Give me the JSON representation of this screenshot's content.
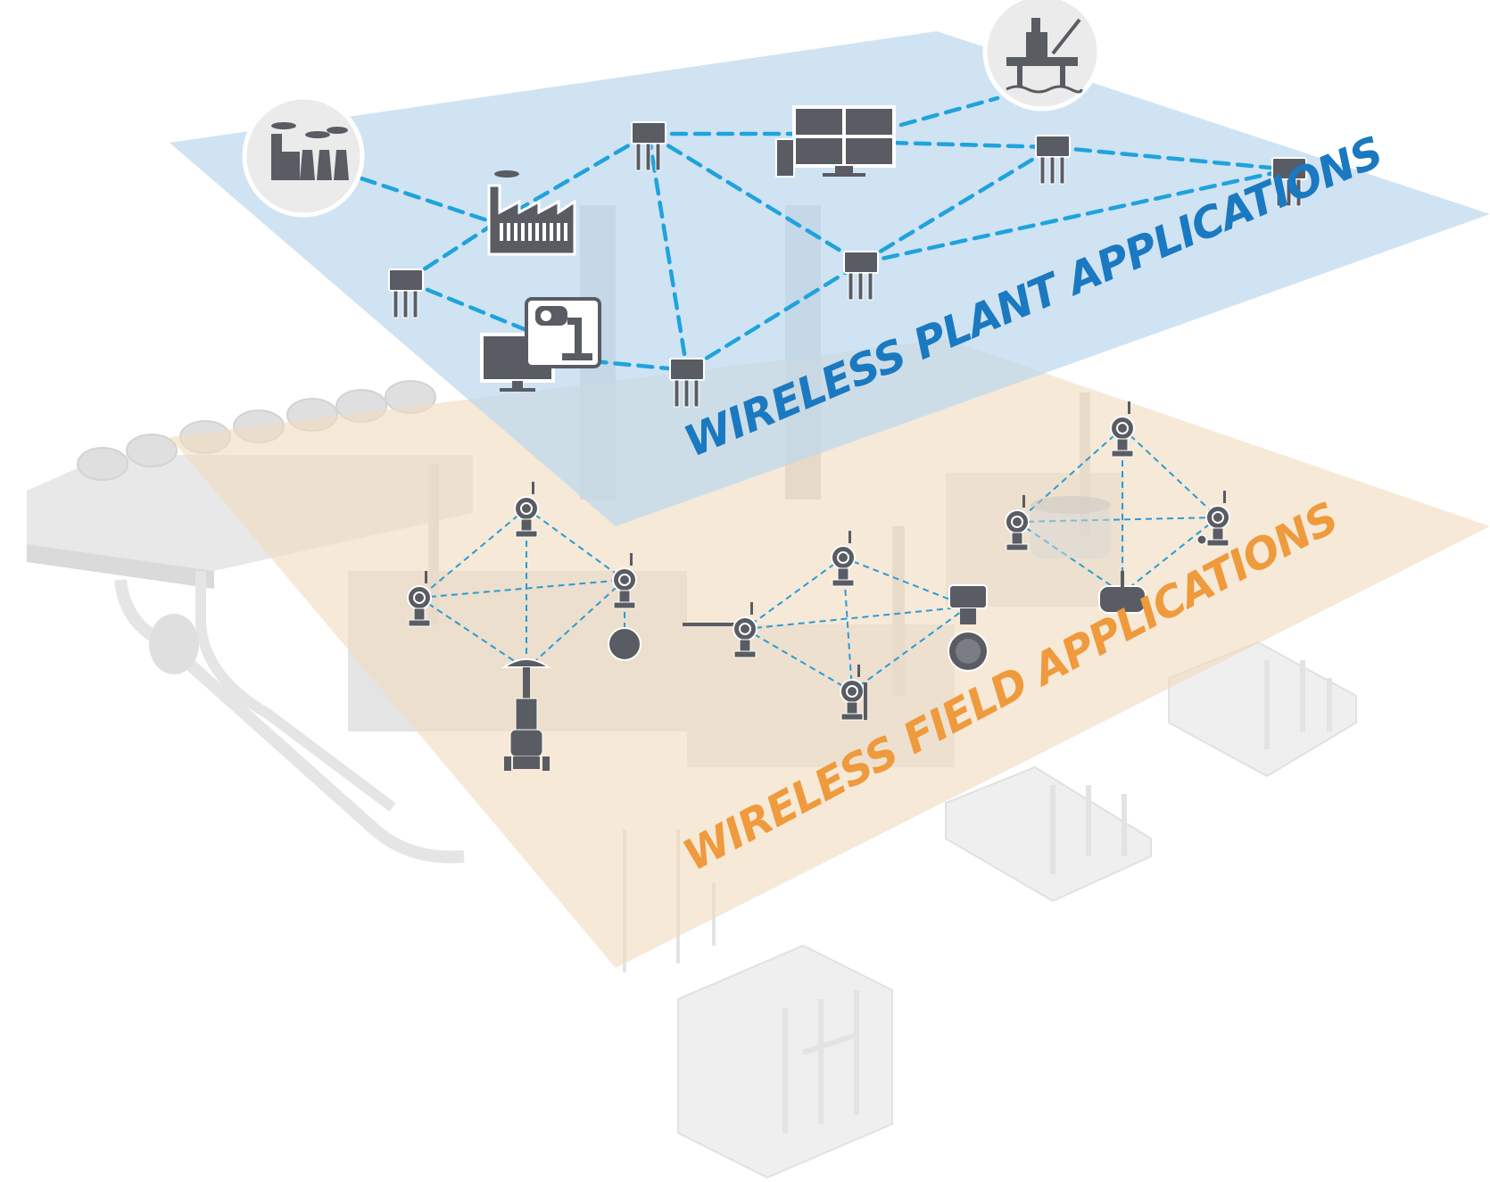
{
  "labels": {
    "plant": "WIRELESS PLANT APPLICATIONS",
    "field": "WIRELESS FIELD APPLICATIONS"
  },
  "colors": {
    "plant_layer": "#bcd8ee",
    "field_layer": "#f1dcbf",
    "plant_text": "#1a79c0",
    "field_text": "#ef9a3c",
    "plant_link": "#1fa3dc",
    "field_link": "#2a9bd6",
    "device": "#595c63",
    "plant_art": "#e6e6e6"
  },
  "plant_nodes": [
    {
      "id": "power-plant",
      "kind": "power-plant-icon"
    },
    {
      "id": "factory",
      "kind": "factory-icon"
    },
    {
      "id": "gateway-top",
      "kind": "gateway-icon"
    },
    {
      "id": "control-room",
      "kind": "video-wall-icon"
    },
    {
      "id": "offshore-rig",
      "kind": "offshore-rig-icon"
    },
    {
      "id": "gateway-right-1",
      "kind": "gateway-icon"
    },
    {
      "id": "gateway-right-2",
      "kind": "gateway-icon"
    },
    {
      "id": "gateway-left",
      "kind": "gateway-icon"
    },
    {
      "id": "camera-station",
      "kind": "security-camera-icon"
    },
    {
      "id": "gateway-center",
      "kind": "gateway-icon"
    },
    {
      "id": "gateway-bottom",
      "kind": "gateway-icon"
    }
  ],
  "field_clusters": [
    {
      "id": "cluster-left",
      "devices": [
        "transmitter-icon",
        "transmitter-icon",
        "transmitter-icon",
        "control-valve-icon"
      ]
    },
    {
      "id": "cluster-middle",
      "devices": [
        "transmitter-icon",
        "level-transmitter-icon",
        "flow-meter-icon",
        "transmitter-icon"
      ]
    },
    {
      "id": "cluster-right",
      "devices": [
        "transmitter-icon",
        "transmitter-icon",
        "transmitter-icon",
        "gateway-icon"
      ]
    }
  ]
}
